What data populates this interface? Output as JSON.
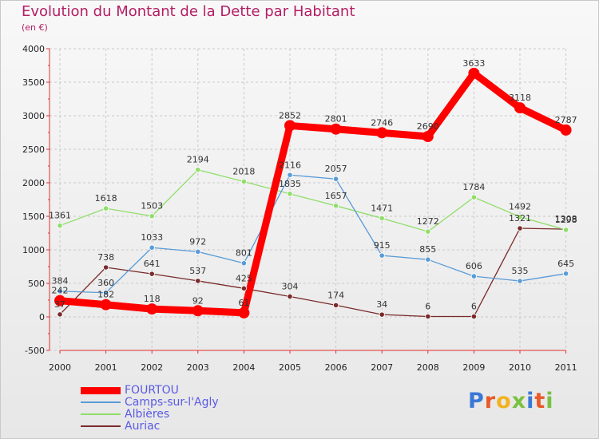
{
  "chart_data": {
    "type": "line",
    "title": "Evolution du Montant de la Dette par Habitant",
    "subtitle": "(en €)",
    "ylim": [
      -500,
      4000
    ],
    "yticks": [
      -500,
      0,
      500,
      1000,
      1500,
      2000,
      2500,
      3000,
      3500,
      4000
    ],
    "categories": [
      "2000",
      "2001",
      "2002",
      "2003",
      "2004",
      "2005",
      "2006",
      "2007",
      "2008",
      "2009",
      "2010",
      "2011"
    ],
    "legend_position": "bottom-left",
    "series": [
      {
        "name": "FOURTOU",
        "color": "#ff0000",
        "values": [
          242,
          182,
          118,
          92,
          61,
          2852,
          2801,
          2746,
          2690,
          3633,
          3118,
          2787
        ],
        "labels": [
          "242",
          "182",
          "118",
          "92",
          "61",
          "2852",
          "2801",
          "2746",
          "2690",
          "3633",
          "3118",
          "2787"
        ]
      },
      {
        "name": "Camps-sur-l'Agly",
        "color": "#5a9bd8",
        "values": [
          384,
          360,
          1033,
          972,
          801,
          2116,
          2057,
          915,
          855,
          606,
          535,
          645
        ],
        "labels": [
          "384",
          "360",
          "1033",
          "972",
          "801",
          "2116",
          "2057",
          "915",
          "855",
          "606",
          "535",
          "645"
        ]
      },
      {
        "name": "Albières",
        "color": "#90de6a",
        "values": [
          1361,
          1618,
          1503,
          2194,
          2018,
          1835,
          1657,
          1471,
          1272,
          1784,
          1492,
          1298
        ],
        "labels": [
          "1361",
          "1618",
          "1503",
          "2194",
          "2018",
          "1835",
          "1657",
          "1471",
          "1272",
          "1784",
          "1492",
          "1298"
        ]
      },
      {
        "name": "Auriac",
        "color": "#7a2a2a",
        "values": [
          37,
          738,
          641,
          537,
          425,
          304,
          174,
          34,
          6,
          6,
          1321,
          1308
        ],
        "labels": [
          "37",
          "738",
          "641",
          "537",
          "425",
          "304",
          "174",
          "34",
          "6",
          "6",
          "1321",
          "1308"
        ]
      }
    ]
  },
  "logo": {
    "letters": [
      {
        "ch": "P",
        "color": "#3a78d6"
      },
      {
        "ch": "r",
        "color": "#e85a2a"
      },
      {
        "ch": "o",
        "color": "#f2b21e"
      },
      {
        "ch": "x",
        "color": "#7ac142"
      },
      {
        "ch": "i",
        "color": "#3a78d6"
      },
      {
        "ch": "t",
        "color": "#e85a2a"
      },
      {
        "ch": "i",
        "color": "#7ac142"
      }
    ]
  }
}
